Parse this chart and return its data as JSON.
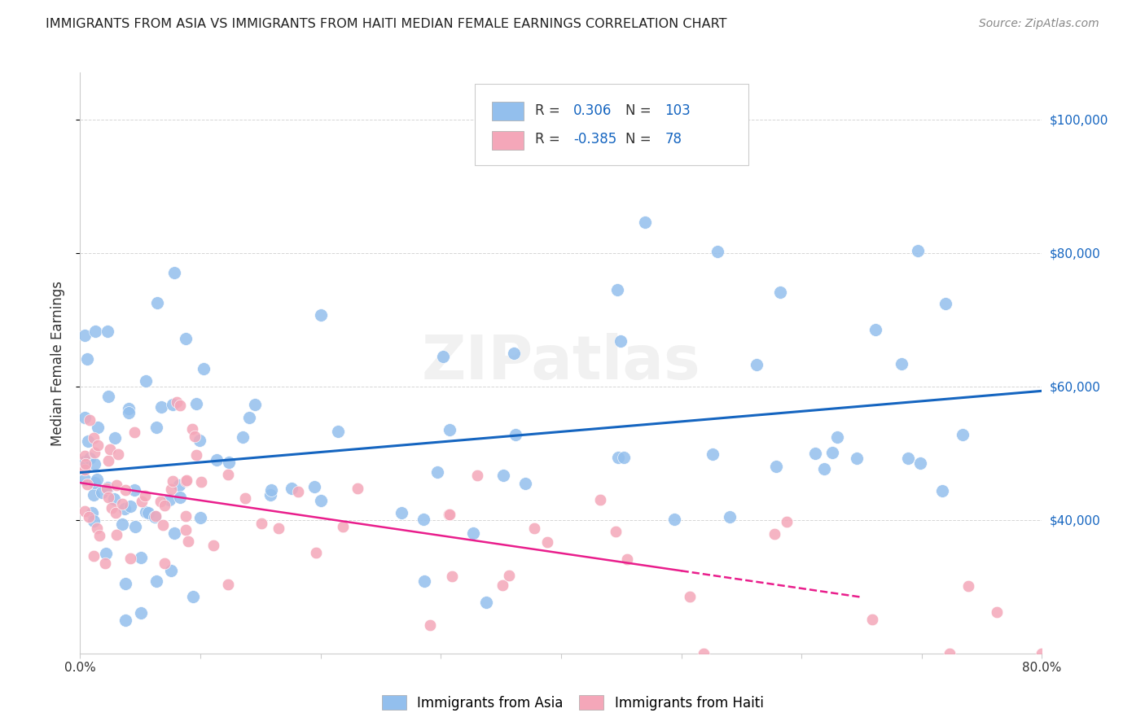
{
  "title": "IMMIGRANTS FROM ASIA VS IMMIGRANTS FROM HAITI MEDIAN FEMALE EARNINGS CORRELATION CHART",
  "source": "Source: ZipAtlas.com",
  "ylabel": "Median Female Earnings",
  "xlim": [
    0.0,
    0.8
  ],
  "ylim": [
    20000,
    107000
  ],
  "yticks": [
    40000,
    60000,
    80000,
    100000
  ],
  "ytick_labels": [
    "$40,000",
    "$60,000",
    "$80,000",
    "$100,000"
  ],
  "xticks": [
    0.0,
    0.1,
    0.2,
    0.3,
    0.4,
    0.5,
    0.6,
    0.7,
    0.8
  ],
  "xtick_labels": [
    "0.0%",
    "",
    "",
    "",
    "",
    "",
    "",
    "",
    "80.0%"
  ],
  "R_asia": 0.306,
  "N_asia": 103,
  "R_haiti": -0.385,
  "N_haiti": 78,
  "color_asia": "#93BFED",
  "color_haiti": "#F4A7B9",
  "line_color_asia": "#1565C0",
  "line_color_haiti": "#E91E8C",
  "watermark": "ZIPatlas",
  "legend_label_asia": "Immigrants from Asia",
  "legend_label_haiti": "Immigrants from Haiti",
  "grid_color": "#cccccc",
  "tick_color": "#1565C0",
  "title_color": "#222222",
  "source_color": "#888888",
  "ylabel_color": "#333333"
}
